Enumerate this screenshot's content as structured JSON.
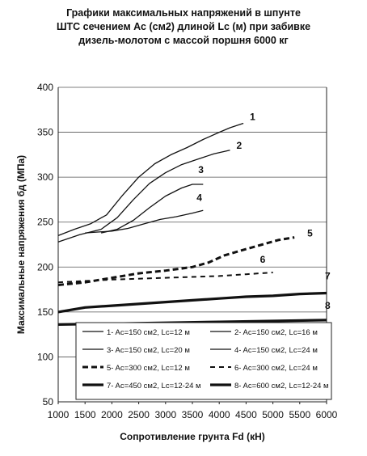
{
  "chart_data": {
    "type": "line",
    "title_lines": [
      "Графики максимальных напряжений в шпунте",
      "ШТС сечением Ас (см2) длиной Lc (м) при забивке",
      "дизель-молотом  с массой поршня 6000 кг"
    ],
    "xlabel": "Сопротивление грунта Fd (кН)",
    "ylabel": "Максимальные напряжения бд  (МПа)",
    "xlim": [
      1000,
      6000
    ],
    "ylim": [
      50,
      400
    ],
    "x_ticks": [
      "1000",
      "1500",
      "2000",
      "2500",
      "3000",
      "3500",
      "4000",
      "4500",
      "5000",
      "5500",
      "6000"
    ],
    "y_ticks": [
      "50",
      "100",
      "150",
      "200",
      "250",
      "300",
      "350",
      "400"
    ],
    "grid": "horizontal",
    "legend_position": "center",
    "series": [
      {
        "name": "1- Ac=150 см2, Lc=12 м",
        "label": "1",
        "style": "thin",
        "x": [
          1000,
          1300,
          1600,
          1900,
          2200,
          2500,
          2800,
          3100,
          3400,
          3700,
          4000,
          4200,
          4450
        ],
        "y": [
          235,
          242,
          248,
          258,
          280,
          300,
          315,
          325,
          333,
          342,
          350,
          355,
          360
        ]
      },
      {
        "name": "2- Ac=150 см2, Lc=16 м",
        "label": "2",
        "style": "thin",
        "x": [
          1000,
          1400,
          1800,
          2100,
          2400,
          2700,
          3000,
          3300,
          3600,
          3900,
          4200
        ],
        "y": [
          228,
          236,
          242,
          255,
          275,
          293,
          305,
          314,
          320,
          326,
          330
        ]
      },
      {
        "name": "3- Ac=150 см2, Lc=20 м",
        "label": "3",
        "style": "thin",
        "x": [
          1800,
          2100,
          2400,
          2700,
          3000,
          3300,
          3500,
          3700
        ],
        "y": [
          238,
          242,
          252,
          266,
          279,
          288,
          292,
          292
        ]
      },
      {
        "name": "4- Ac=150 см2, Lc=24 м",
        "label": "4",
        "style": "thin",
        "x": [
          1500,
          2000,
          2300,
          2600,
          2900,
          3200,
          3500,
          3700
        ],
        "y": [
          238,
          240,
          243,
          248,
          253,
          256,
          260,
          263
        ]
      },
      {
        "name": "5- Ac=300 см2, Lc=12 м",
        "label": "5",
        "style": "dash-thick",
        "x": [
          1000,
          1500,
          2000,
          2500,
          3000,
          3500,
          3800,
          4100,
          4500,
          4800,
          5100,
          5400
        ],
        "y": [
          180,
          183,
          188,
          193,
          196,
          200,
          205,
          213,
          220,
          225,
          230,
          233
        ]
      },
      {
        "name": "6- Ac=300 см2, Lc=24 м",
        "label": "6",
        "style": "dash-thin",
        "x": [
          1000,
          2000,
          3000,
          4000,
          4500,
          5000
        ],
        "y": [
          183,
          186,
          188,
          190,
          192,
          194
        ]
      },
      {
        "name": "7- Ac=450 см2, Lc=12-24 м",
        "label": "7",
        "style": "thick",
        "x": [
          1000,
          1500,
          2000,
          2500,
          3000,
          3500,
          4000,
          4500,
          5000,
          5500,
          6000
        ],
        "y": [
          150,
          155,
          157,
          159,
          161,
          163,
          165,
          167,
          168,
          170,
          171
        ]
      },
      {
        "name": "8- Ac=600 см2, Lc=12-24 м",
        "label": "8",
        "style": "thick",
        "x": [
          1000,
          2000,
          3000,
          4000,
          5000,
          6000
        ],
        "y": [
          136,
          137,
          138,
          139,
          140,
          141
        ]
      }
    ]
  }
}
